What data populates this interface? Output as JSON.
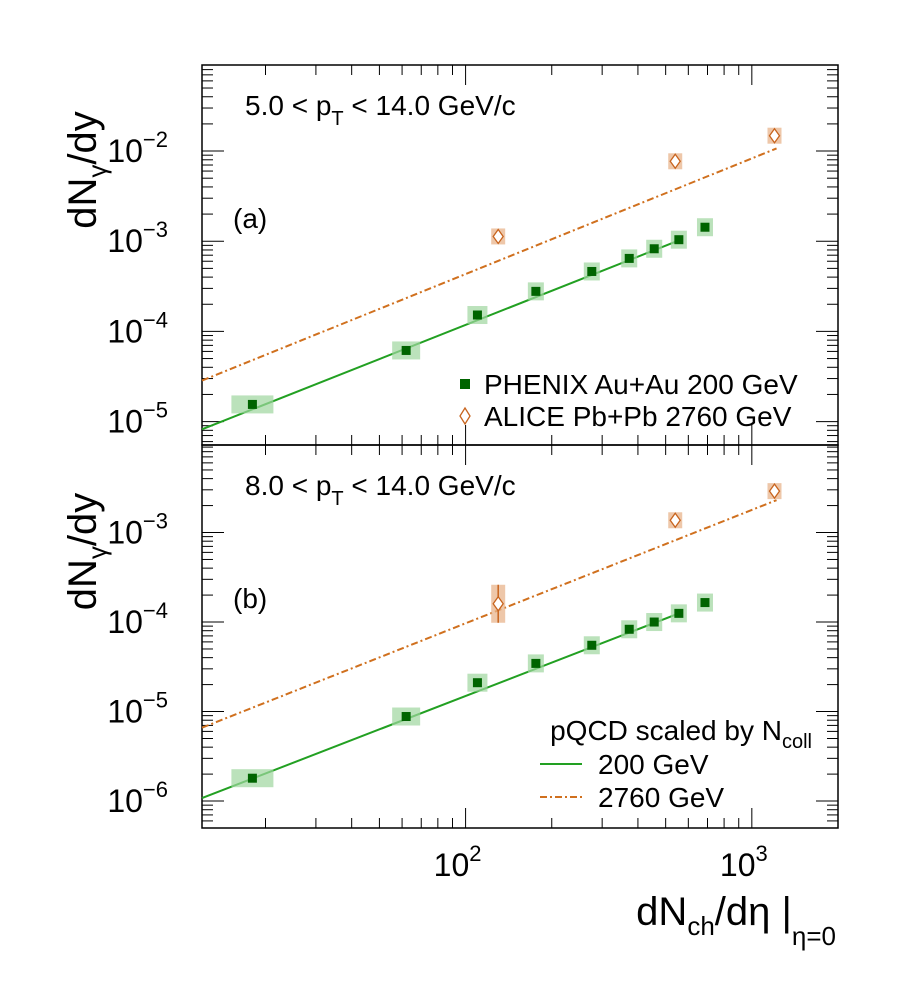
{
  "chart_data": [
    {
      "type": "scatter",
      "panel_label": "(a)",
      "kinematic_range": {
        "prefix": "5.0 < p",
        "sub": "T",
        "suffix": " < 14.0 GeV/c"
      },
      "ylabel": {
        "main": "dN",
        "sub": "γ",
        "tail": "/dy"
      },
      "xscale": "log",
      "yscale": "log",
      "xlim": [
        12,
        2000
      ],
      "ylim": [
        5.5e-06,
        0.09
      ],
      "ytick_labels": [
        {
          "v": 1e-05,
          "exp": "−5"
        },
        {
          "v": 0.0001,
          "exp": "−4"
        },
        {
          "v": 0.001,
          "exp": "−3"
        },
        {
          "v": 0.01,
          "exp": "−2"
        }
      ],
      "series": [
        {
          "name": "PHENIX Au+Au 200 GeV",
          "marker": "square",
          "color": "#006400",
          "x": [
            18,
            62,
            110,
            176,
            276,
            373,
            456,
            556,
            686
          ],
          "y": [
            1.55e-05,
            6.15e-05,
            0.000152,
            0.000278,
            0.000462,
            0.000645,
            0.000825,
            0.00104,
            0.00143
          ]
        },
        {
          "name": "ALICE Pb+Pb 2760 GeV",
          "marker": "open-diamond",
          "color": "#c8641e",
          "x": [
            130,
            540,
            1200
          ],
          "y": [
            0.00113,
            0.0077,
            0.0148
          ]
        },
        {
          "name": "200 GeV",
          "line": "solid",
          "color": "#22a022",
          "x": [
            12,
            560
          ],
          "y": [
            8.2e-06,
            0.00103
          ]
        },
        {
          "name": "2760 GeV",
          "line": "dash-dot",
          "color": "#d0701e",
          "x": [
            12,
            1220
          ],
          "y": [
            2.85e-05,
            0.0107
          ]
        }
      ],
      "legend": [
        {
          "label": "PHENIX Au+Au 200 GeV",
          "marker": "square"
        },
        {
          "label": "ALICE Pb+Pb 2760 GeV",
          "marker": "open-diamond"
        }
      ]
    },
    {
      "type": "scatter",
      "panel_label": "(b)",
      "kinematic_range": {
        "prefix": "8.0 < p",
        "sub": "T",
        "suffix": " < 14.0 GeV/c"
      },
      "ylabel": {
        "main": "dN",
        "sub": "γ",
        "tail": "/dy"
      },
      "xlabel": {
        "main": "dN",
        "sub": "ch",
        "tail": "/dη |",
        "sub2": "η=0"
      },
      "xscale": "log",
      "yscale": "log",
      "xlim": [
        12,
        2000
      ],
      "ylim": [
        5e-07,
        0.0095
      ],
      "xtick_labels": [
        {
          "v": 100,
          "exp": "2"
        },
        {
          "v": 1000,
          "exp": "3"
        }
      ],
      "ytick_labels": [
        {
          "v": 1e-06,
          "exp": "−6"
        },
        {
          "v": 1e-05,
          "exp": "−5"
        },
        {
          "v": 0.0001,
          "exp": "−4"
        },
        {
          "v": 0.001,
          "exp": "−3"
        }
      ],
      "series": [
        {
          "name": "PHENIX Au+Au 200 GeV",
          "marker": "square",
          "color": "#006400",
          "x": [
            18,
            62,
            110,
            176,
            276,
            373,
            456,
            556,
            686
          ],
          "y": [
            1.8e-06,
            8.8e-06,
            2.1e-05,
            3.45e-05,
            5.5e-05,
            8.3e-05,
            0.0001,
            0.000125,
            0.000165
          ]
        },
        {
          "name": "ALICE Pb+Pb 2760 GeV",
          "marker": "open-diamond",
          "color": "#c8641e",
          "x": [
            130,
            540,
            1200
          ],
          "y": [
            0.00016,
            0.00137,
            0.0029
          ]
        },
        {
          "name": "200 GeV",
          "line": "solid",
          "color": "#22a022",
          "x": [
            12,
            560
          ],
          "y": [
            1.08e-06,
            0.000126
          ]
        },
        {
          "name": "2760 GeV",
          "line": "dash-dot",
          "color": "#d0701e",
          "x": [
            12,
            1220
          ],
          "y": [
            6.6e-06,
            0.0023
          ]
        }
      ],
      "legend_title": {
        "main": "pQCD scaled by N",
        "sub": "coll"
      },
      "legend": [
        {
          "label": "200 GeV",
          "line": "solid"
        },
        {
          "label": "2760 GeV",
          "line": "dash-dot"
        }
      ]
    }
  ]
}
